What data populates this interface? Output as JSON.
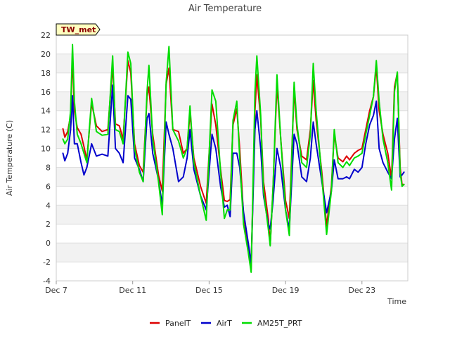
{
  "chart_data": {
    "type": "line",
    "title": "Air Temperature",
    "xlabel": "Time",
    "ylabel": "Air Temperature (C)",
    "station_label": "TW_met",
    "xlim": [
      0,
      18.4
    ],
    "ylim": [
      -4,
      22
    ],
    "yticks": [
      -4,
      -2,
      0,
      2,
      4,
      6,
      8,
      10,
      12,
      14,
      16,
      18,
      20,
      22
    ],
    "xticks": [
      {
        "x": 0,
        "label": "Dec 7"
      },
      {
        "x": 4,
        "label": "Dec 11"
      },
      {
        "x": 8,
        "label": "Dec 15"
      },
      {
        "x": 12,
        "label": "Dec 19"
      },
      {
        "x": 16,
        "label": "Dec 23"
      }
    ],
    "grid_bands": true,
    "legend_position": "bottom-center",
    "series": [
      {
        "name": "PanelT",
        "color": "#dd0000",
        "points": [
          [
            0.35,
            12.1
          ],
          [
            0.45,
            11.2
          ],
          [
            0.6,
            11.8
          ],
          [
            0.75,
            13.5
          ],
          [
            0.85,
            19.8
          ],
          [
            0.95,
            14
          ],
          [
            1.1,
            12.2
          ],
          [
            1.3,
            11.5
          ],
          [
            1.45,
            10.2
          ],
          [
            1.6,
            8.8
          ],
          [
            1.85,
            14.8
          ],
          [
            2.1,
            12.4
          ],
          [
            2.4,
            11.8
          ],
          [
            2.7,
            12.0
          ],
          [
            2.95,
            18.8
          ],
          [
            3.1,
            12.6
          ],
          [
            3.3,
            12.4
          ],
          [
            3.5,
            11
          ],
          [
            3.75,
            19.3
          ],
          [
            3.9,
            18
          ],
          [
            4.1,
            10.5
          ],
          [
            4.35,
            8.2
          ],
          [
            4.55,
            7.5
          ],
          [
            4.75,
            15.5
          ],
          [
            4.85,
            16.5
          ],
          [
            5.05,
            11.5
          ],
          [
            5.35,
            7.2
          ],
          [
            5.55,
            5.5
          ],
          [
            5.75,
            16.8
          ],
          [
            5.9,
            18.5
          ],
          [
            6.1,
            12
          ],
          [
            6.4,
            11.8
          ],
          [
            6.65,
            9.5
          ],
          [
            6.85,
            10
          ],
          [
            7.0,
            13.8
          ],
          [
            7.2,
            9
          ],
          [
            7.55,
            6
          ],
          [
            7.85,
            4.2
          ],
          [
            8.15,
            14.7
          ],
          [
            8.35,
            12.5
          ],
          [
            8.6,
            7.8
          ],
          [
            8.8,
            4.5
          ],
          [
            8.95,
            4.4
          ],
          [
            9.1,
            4.6
          ],
          [
            9.25,
            12.5
          ],
          [
            9.45,
            14.2
          ],
          [
            9.6,
            10
          ],
          [
            9.8,
            3
          ],
          [
            10.05,
            -0.5
          ],
          [
            10.2,
            -2.8
          ],
          [
            10.4,
            14
          ],
          [
            10.5,
            17.8
          ],
          [
            10.7,
            13
          ],
          [
            10.85,
            6.5
          ],
          [
            11.1,
            2.5
          ],
          [
            11.2,
            -0.2
          ],
          [
            11.35,
            6
          ],
          [
            11.55,
            16.8
          ],
          [
            11.75,
            11
          ],
          [
            12.0,
            4.5
          ],
          [
            12.2,
            2.6
          ],
          [
            12.45,
            16.2
          ],
          [
            12.6,
            12
          ],
          [
            12.85,
            9.2
          ],
          [
            13.1,
            8.8
          ],
          [
            13.3,
            12
          ],
          [
            13.45,
            17.2
          ],
          [
            13.6,
            13
          ],
          [
            13.9,
            7.5
          ],
          [
            14.15,
            1.8
          ],
          [
            14.4,
            6
          ],
          [
            14.55,
            11.5
          ],
          [
            14.75,
            9
          ],
          [
            15.0,
            8.6
          ],
          [
            15.2,
            9.2
          ],
          [
            15.35,
            8.8
          ],
          [
            15.6,
            9.5
          ],
          [
            15.8,
            9.8
          ],
          [
            16.0,
            10
          ],
          [
            16.2,
            12
          ],
          [
            16.4,
            14
          ],
          [
            16.6,
            15.5
          ],
          [
            16.75,
            18.7
          ],
          [
            16.9,
            14
          ],
          [
            17.1,
            11.5
          ],
          [
            17.35,
            9.5
          ],
          [
            17.55,
            6.8
          ],
          [
            17.7,
            16.5
          ],
          [
            17.85,
            18
          ],
          [
            18.0,
            8
          ],
          [
            18.1,
            6.2
          ],
          [
            18.2,
            6.2
          ]
        ]
      },
      {
        "name": "AirT",
        "color": "#0000cc",
        "points": [
          [
            0.35,
            9.5
          ],
          [
            0.45,
            8.7
          ],
          [
            0.6,
            9.5
          ],
          [
            0.75,
            12
          ],
          [
            0.85,
            15.6
          ],
          [
            0.95,
            10.5
          ],
          [
            1.1,
            10.5
          ],
          [
            1.3,
            8.5
          ],
          [
            1.45,
            7.2
          ],
          [
            1.6,
            8
          ],
          [
            1.85,
            10.5
          ],
          [
            2.1,
            9.2
          ],
          [
            2.4,
            9.4
          ],
          [
            2.7,
            9.2
          ],
          [
            2.95,
            16.7
          ],
          [
            3.1,
            10
          ],
          [
            3.3,
            9.5
          ],
          [
            3.5,
            8.5
          ],
          [
            3.75,
            15.6
          ],
          [
            3.9,
            15.2
          ],
          [
            4.1,
            9
          ],
          [
            4.35,
            7.8
          ],
          [
            4.55,
            6.5
          ],
          [
            4.75,
            13.2
          ],
          [
            4.85,
            13.7
          ],
          [
            5.05,
            9.5
          ],
          [
            5.35,
            6.7
          ],
          [
            5.55,
            4.0
          ],
          [
            5.75,
            12.8
          ],
          [
            5.9,
            11.5
          ],
          [
            6.1,
            10
          ],
          [
            6.4,
            6.5
          ],
          [
            6.65,
            7.0
          ],
          [
            6.85,
            9
          ],
          [
            7.0,
            12
          ],
          [
            7.2,
            7.8
          ],
          [
            7.55,
            5
          ],
          [
            7.85,
            3.5
          ],
          [
            8.15,
            11.5
          ],
          [
            8.35,
            10
          ],
          [
            8.6,
            6
          ],
          [
            8.8,
            3.8
          ],
          [
            8.95,
            4.0
          ],
          [
            9.1,
            2.8
          ],
          [
            9.25,
            9.5
          ],
          [
            9.45,
            9.5
          ],
          [
            9.6,
            8
          ],
          [
            9.8,
            3.3
          ],
          [
            10.05,
            0
          ],
          [
            10.2,
            -2.2
          ],
          [
            10.4,
            12
          ],
          [
            10.5,
            14
          ],
          [
            10.7,
            10
          ],
          [
            10.85,
            5
          ],
          [
            11.1,
            2
          ],
          [
            11.2,
            1.5
          ],
          [
            11.35,
            4.5
          ],
          [
            11.55,
            10
          ],
          [
            11.75,
            8
          ],
          [
            12.0,
            3.5
          ],
          [
            12.2,
            1.5
          ],
          [
            12.45,
            11.5
          ],
          [
            12.6,
            10.5
          ],
          [
            12.85,
            7
          ],
          [
            13.1,
            6.5
          ],
          [
            13.3,
            9
          ],
          [
            13.45,
            12.8
          ],
          [
            13.6,
            10.5
          ],
          [
            13.9,
            6.5
          ],
          [
            14.15,
            3.2
          ],
          [
            14.4,
            5.5
          ],
          [
            14.55,
            8.8
          ],
          [
            14.75,
            6.8
          ],
          [
            15.0,
            6.8
          ],
          [
            15.2,
            7
          ],
          [
            15.35,
            6.8
          ],
          [
            15.6,
            7.8
          ],
          [
            15.8,
            7.5
          ],
          [
            16.0,
            8
          ],
          [
            16.2,
            10.5
          ],
          [
            16.4,
            12.5
          ],
          [
            16.6,
            13.5
          ],
          [
            16.75,
            15
          ],
          [
            16.9,
            10
          ],
          [
            17.1,
            8.5
          ],
          [
            17.35,
            7.5
          ],
          [
            17.55,
            6.8
          ],
          [
            17.7,
            11
          ],
          [
            17.85,
            13.2
          ],
          [
            18.0,
            7
          ],
          [
            18.1,
            7.2
          ],
          [
            18.2,
            7.5
          ]
        ]
      },
      {
        "name": "AM25T_PRT",
        "color": "#00dd00",
        "points": [
          [
            0.35,
            11
          ],
          [
            0.45,
            10.5
          ],
          [
            0.6,
            11
          ],
          [
            0.75,
            14
          ],
          [
            0.85,
            21
          ],
          [
            0.95,
            15
          ],
          [
            1.1,
            11.5
          ],
          [
            1.3,
            10.5
          ],
          [
            1.45,
            9.5
          ],
          [
            1.6,
            8.5
          ],
          [
            1.85,
            15.3
          ],
          [
            2.1,
            11.8
          ],
          [
            2.4,
            11.4
          ],
          [
            2.7,
            11.5
          ],
          [
            2.95,
            19.8
          ],
          [
            3.1,
            12
          ],
          [
            3.3,
            11.8
          ],
          [
            3.5,
            10.5
          ],
          [
            3.75,
            20.2
          ],
          [
            3.9,
            19
          ],
          [
            4.1,
            10
          ],
          [
            4.35,
            7.5
          ],
          [
            4.55,
            6.5
          ],
          [
            4.75,
            16
          ],
          [
            4.85,
            18.8
          ],
          [
            5.05,
            11
          ],
          [
            5.35,
            6.5
          ],
          [
            5.55,
            3.0
          ],
          [
            5.75,
            17
          ],
          [
            5.9,
            20.8
          ],
          [
            6.1,
            12
          ],
          [
            6.4,
            10.8
          ],
          [
            6.65,
            9
          ],
          [
            6.85,
            10
          ],
          [
            7.0,
            14.5
          ],
          [
            7.2,
            8.5
          ],
          [
            7.55,
            5
          ],
          [
            7.85,
            2.4
          ],
          [
            8.15,
            16.2
          ],
          [
            8.35,
            15
          ],
          [
            8.6,
            7.5
          ],
          [
            8.8,
            2.6
          ],
          [
            8.95,
            3.5
          ],
          [
            9.1,
            3.5
          ],
          [
            9.25,
            13
          ],
          [
            9.45,
            15
          ],
          [
            9.6,
            9
          ],
          [
            9.8,
            2
          ],
          [
            10.05,
            -1
          ],
          [
            10.2,
            -3.1
          ],
          [
            10.4,
            16
          ],
          [
            10.5,
            19.8
          ],
          [
            10.7,
            13.5
          ],
          [
            10.85,
            5.5
          ],
          [
            11.1,
            1.5
          ],
          [
            11.2,
            -0.3
          ],
          [
            11.35,
            6
          ],
          [
            11.55,
            17.8
          ],
          [
            11.75,
            11
          ],
          [
            12.0,
            3.5
          ],
          [
            12.2,
            0.8
          ],
          [
            12.45,
            17
          ],
          [
            12.6,
            12.5
          ],
          [
            12.85,
            8.5
          ],
          [
            13.1,
            8
          ],
          [
            13.3,
            11.5
          ],
          [
            13.45,
            19
          ],
          [
            13.6,
            14
          ],
          [
            13.9,
            7
          ],
          [
            14.15,
            0.9
          ],
          [
            14.4,
            5.5
          ],
          [
            14.55,
            12
          ],
          [
            14.75,
            8.5
          ],
          [
            15.0,
            8
          ],
          [
            15.2,
            8.6
          ],
          [
            15.35,
            8.2
          ],
          [
            15.6,
            9
          ],
          [
            15.8,
            9.2
          ],
          [
            16.0,
            9.5
          ],
          [
            16.2,
            11.5
          ],
          [
            16.4,
            13.5
          ],
          [
            16.6,
            15.5
          ],
          [
            16.75,
            19.3
          ],
          [
            16.9,
            15
          ],
          [
            17.1,
            11
          ],
          [
            17.35,
            8.5
          ],
          [
            17.55,
            5.6
          ],
          [
            17.7,
            16
          ],
          [
            17.85,
            18.1
          ],
          [
            18.0,
            7.5
          ],
          [
            18.1,
            6
          ],
          [
            18.2,
            6.2
          ]
        ]
      }
    ]
  }
}
